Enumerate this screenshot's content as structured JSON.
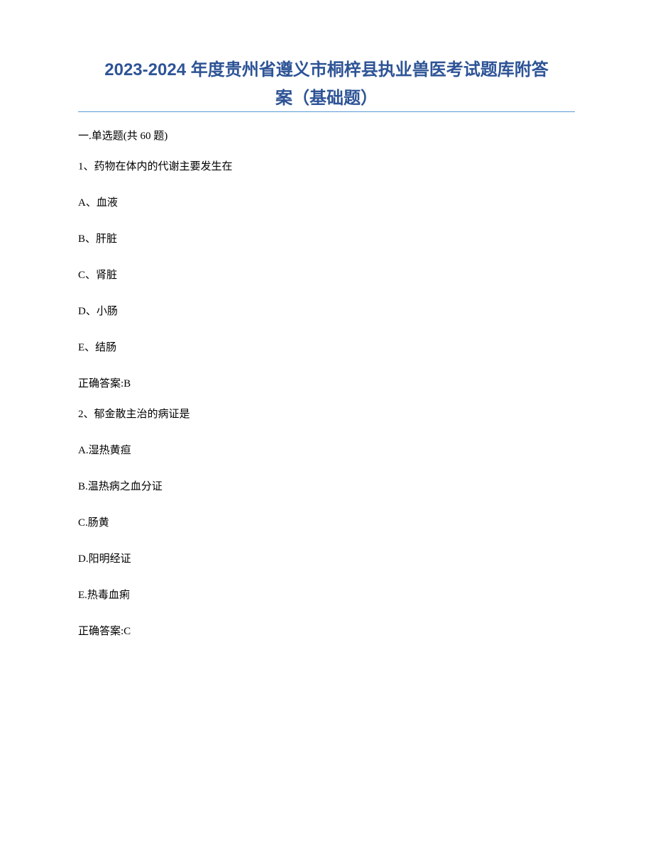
{
  "title_line1": "2023-2024 年度贵州省遵义市桐梓县执业兽医考试题库附答",
  "title_line2": "案（基础题）",
  "section_header": "一.单选题(共 60 题)",
  "q1": {
    "text": "1、药物在体内的代谢主要发生在",
    "opt_a": "A、血液",
    "opt_b": "B、肝脏",
    "opt_c": "C、肾脏",
    "opt_d": "D、小肠",
    "opt_e": "E、结肠",
    "answer": "正确答案:B"
  },
  "q2": {
    "text": "2、郁金散主治的病证是",
    "opt_a": "A.湿热黄疸",
    "opt_b": "B.温热病之血分证",
    "opt_c": "C.肠黄",
    "opt_d": "D.阳明经证",
    "opt_e": "E.热毒血痢",
    "answer": "正确答案:C"
  }
}
